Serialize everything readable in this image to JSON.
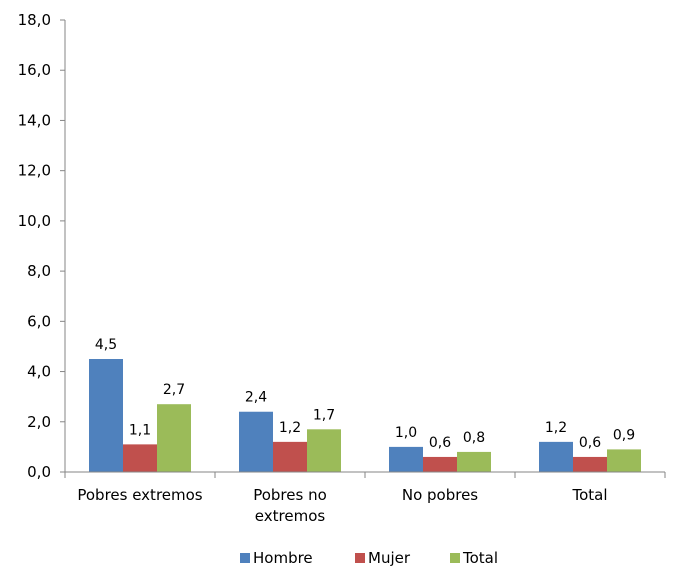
{
  "chart_data": {
    "type": "bar",
    "categories": [
      [
        "Pobres extremos"
      ],
      [
        "Pobres no",
        "extremos"
      ],
      [
        "No pobres"
      ],
      [
        "Total"
      ]
    ],
    "series": [
      {
        "name": "Hombre",
        "values": [
          4.5,
          2.4,
          1.0,
          1.2
        ],
        "labels": [
          "4,5",
          "2,4",
          "1,0",
          "1,2"
        ],
        "color": "#4f81bd"
      },
      {
        "name": "Mujer",
        "values": [
          1.1,
          1.2,
          0.6,
          0.6
        ],
        "labels": [
          "1,1",
          "1,2",
          "0,6",
          "0,6"
        ],
        "color": "#c0504d"
      },
      {
        "name": "Total",
        "values": [
          2.7,
          1.7,
          0.8,
          0.9
        ],
        "labels": [
          "2,7",
          "1,7",
          "0,8",
          "0,9"
        ],
        "color": "#9bbb59"
      }
    ],
    "ylim": [
      0,
      18
    ],
    "yticks": [
      {
        "value": 0,
        "label": "0,0"
      },
      {
        "value": 2,
        "label": "2,0"
      },
      {
        "value": 4,
        "label": "4,0"
      },
      {
        "value": 6,
        "label": "6,0"
      },
      {
        "value": 8,
        "label": "8,0"
      },
      {
        "value": 10,
        "label": "10,0"
      },
      {
        "value": 12,
        "label": "12,0"
      },
      {
        "value": 14,
        "label": "14,0"
      },
      {
        "value": 16,
        "label": "16,0"
      },
      {
        "value": 18,
        "label": "18,0"
      }
    ],
    "grid": false,
    "legend_position": "bottom"
  }
}
